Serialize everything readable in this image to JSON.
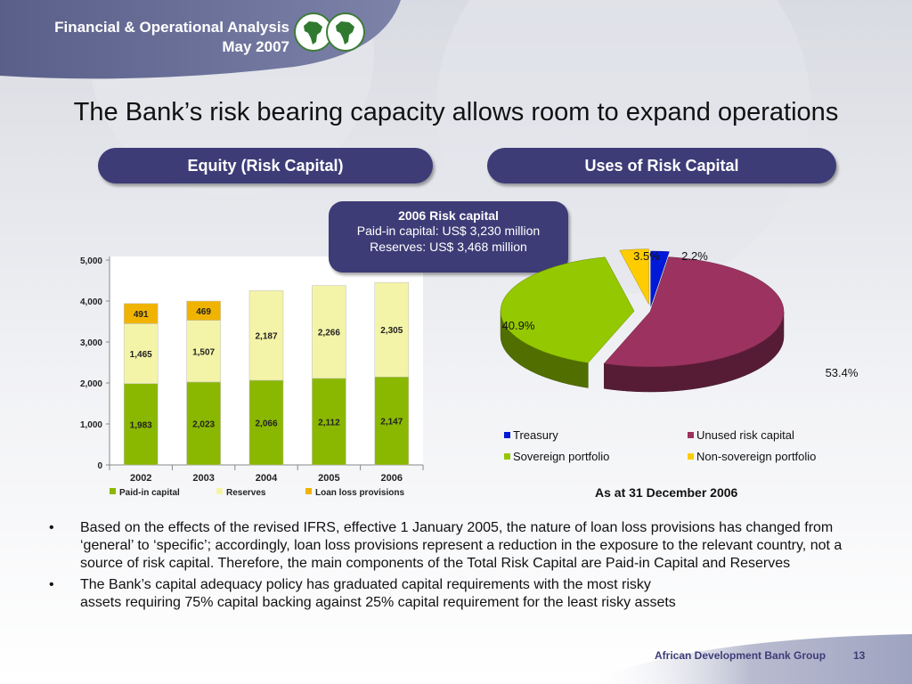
{
  "header": {
    "line1": "Financial & Operational Analysis",
    "line2": "May 2007"
  },
  "title": "The Bank’s risk bearing capacity allows room to expand operations",
  "pills": {
    "left": "Equity (Risk Capital)",
    "right": "Uses of Risk Capital"
  },
  "callout": {
    "title": "2006 Risk capital",
    "line1": "Paid-in capital: US$ 3,230 million",
    "line2": "Reserves: US$ 3,468 million"
  },
  "pie_caption": "As at 31 December 2006",
  "bullets": [
    "Based on the effects of the revised IFRS, effective 1 January 2005, the nature of loan loss provisions has changed from ‘general’ to ‘specific’; accordingly, loan loss provisions represent a reduction in the exposure to the relevant country, not a source of risk capital. Therefore, the main components of the Total Risk Capital are Paid-in Capital and Reserves",
    "The Bank’s capital adequacy policy has graduated capital requirements with the most risky assets requiring 75% capital backing against 25% capital requirement for the least risky assets"
  ],
  "footer": {
    "org": "African Development Bank Group",
    "page": "13"
  },
  "colors": {
    "brand": "#3d3c77",
    "paid_in": "#8ab800",
    "reserves": "#f4f4a8",
    "loan_loss": "#f0b400",
    "treasury": "#0018d8",
    "unused": "#9c3260",
    "sovereign": "#94c800",
    "non_sovereign": "#ffcc00"
  },
  "chart_data": [
    {
      "type": "bar",
      "stacked": true,
      "title": "",
      "xlabel": "",
      "ylabel": "",
      "categories": [
        "2002",
        "2003",
        "2004",
        "2005",
        "2006"
      ],
      "series": [
        {
          "name": "Paid-in capital",
          "values": [
            1983,
            2023,
            2066,
            2112,
            2147
          ],
          "labels": [
            "1,983",
            "2,023",
            "2,066",
            "2,112",
            "2,147"
          ]
        },
        {
          "name": "Reserves",
          "values": [
            1465,
            1507,
            2187,
            2266,
            2305
          ],
          "labels": [
            "1,465",
            "1,507",
            "2,187",
            "2,266",
            "2,305"
          ]
        },
        {
          "name": "Loan loss provisions",
          "values": [
            491,
            469,
            0,
            0,
            0
          ],
          "labels": [
            "491",
            "469",
            "",
            "",
            ""
          ]
        }
      ],
      "ylim": [
        0,
        5000
      ],
      "yticks": [
        0,
        1000,
        2000,
        3000,
        4000,
        5000
      ],
      "ytick_labels": [
        "0",
        "1,000",
        "2,000",
        "3,000",
        "4,000",
        "5,000"
      ],
      "grid": false,
      "legend": "bottom"
    },
    {
      "type": "pie",
      "style": "3d",
      "title": "",
      "slices": [
        {
          "name": "Treasury",
          "value": 2.2,
          "label": "2.2%"
        },
        {
          "name": "Unused risk capital",
          "value": 53.4,
          "label": "53.4%"
        },
        {
          "name": "Sovereign portfolio",
          "value": 40.9,
          "label": "40.9%"
        },
        {
          "name": "Non-sovereign portfolio",
          "value": 3.5,
          "label": "3.5%"
        }
      ],
      "legend": "bottom"
    }
  ]
}
